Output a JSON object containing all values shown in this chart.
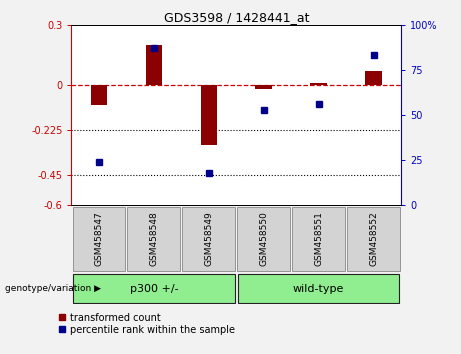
{
  "title": "GDS3598 / 1428441_at",
  "samples": [
    "GSM458547",
    "GSM458548",
    "GSM458549",
    "GSM458550",
    "GSM458551",
    "GSM458552"
  ],
  "red_values": [
    -0.1,
    0.2,
    -0.3,
    -0.02,
    0.01,
    0.07
  ],
  "blue_values": [
    24,
    87,
    18,
    53,
    56,
    83
  ],
  "left_ylim": [
    -0.6,
    0.3
  ],
  "right_ylim": [
    0,
    100
  ],
  "left_yticks": [
    0.3,
    0,
    -0.225,
    -0.45,
    -0.6
  ],
  "right_yticks": [
    100,
    75,
    50,
    25,
    0
  ],
  "dotted_lines": [
    -0.225,
    -0.45
  ],
  "bar_color": "#8B0000",
  "square_color": "#00008B",
  "dashed_line_color": "#CC0000",
  "group1_label": "p300 +/-",
  "group2_label": "wild-type",
  "group_color": "#90EE90",
  "sample_box_color": "#d3d3d3",
  "genotype_label": "genotype/variation",
  "legend_red": "transformed count",
  "legend_blue": "percentile rank within the sample",
  "left_axis_color": "#CC0000",
  "right_axis_color": "#0000CC",
  "fig_bg": "#f2f2f2"
}
